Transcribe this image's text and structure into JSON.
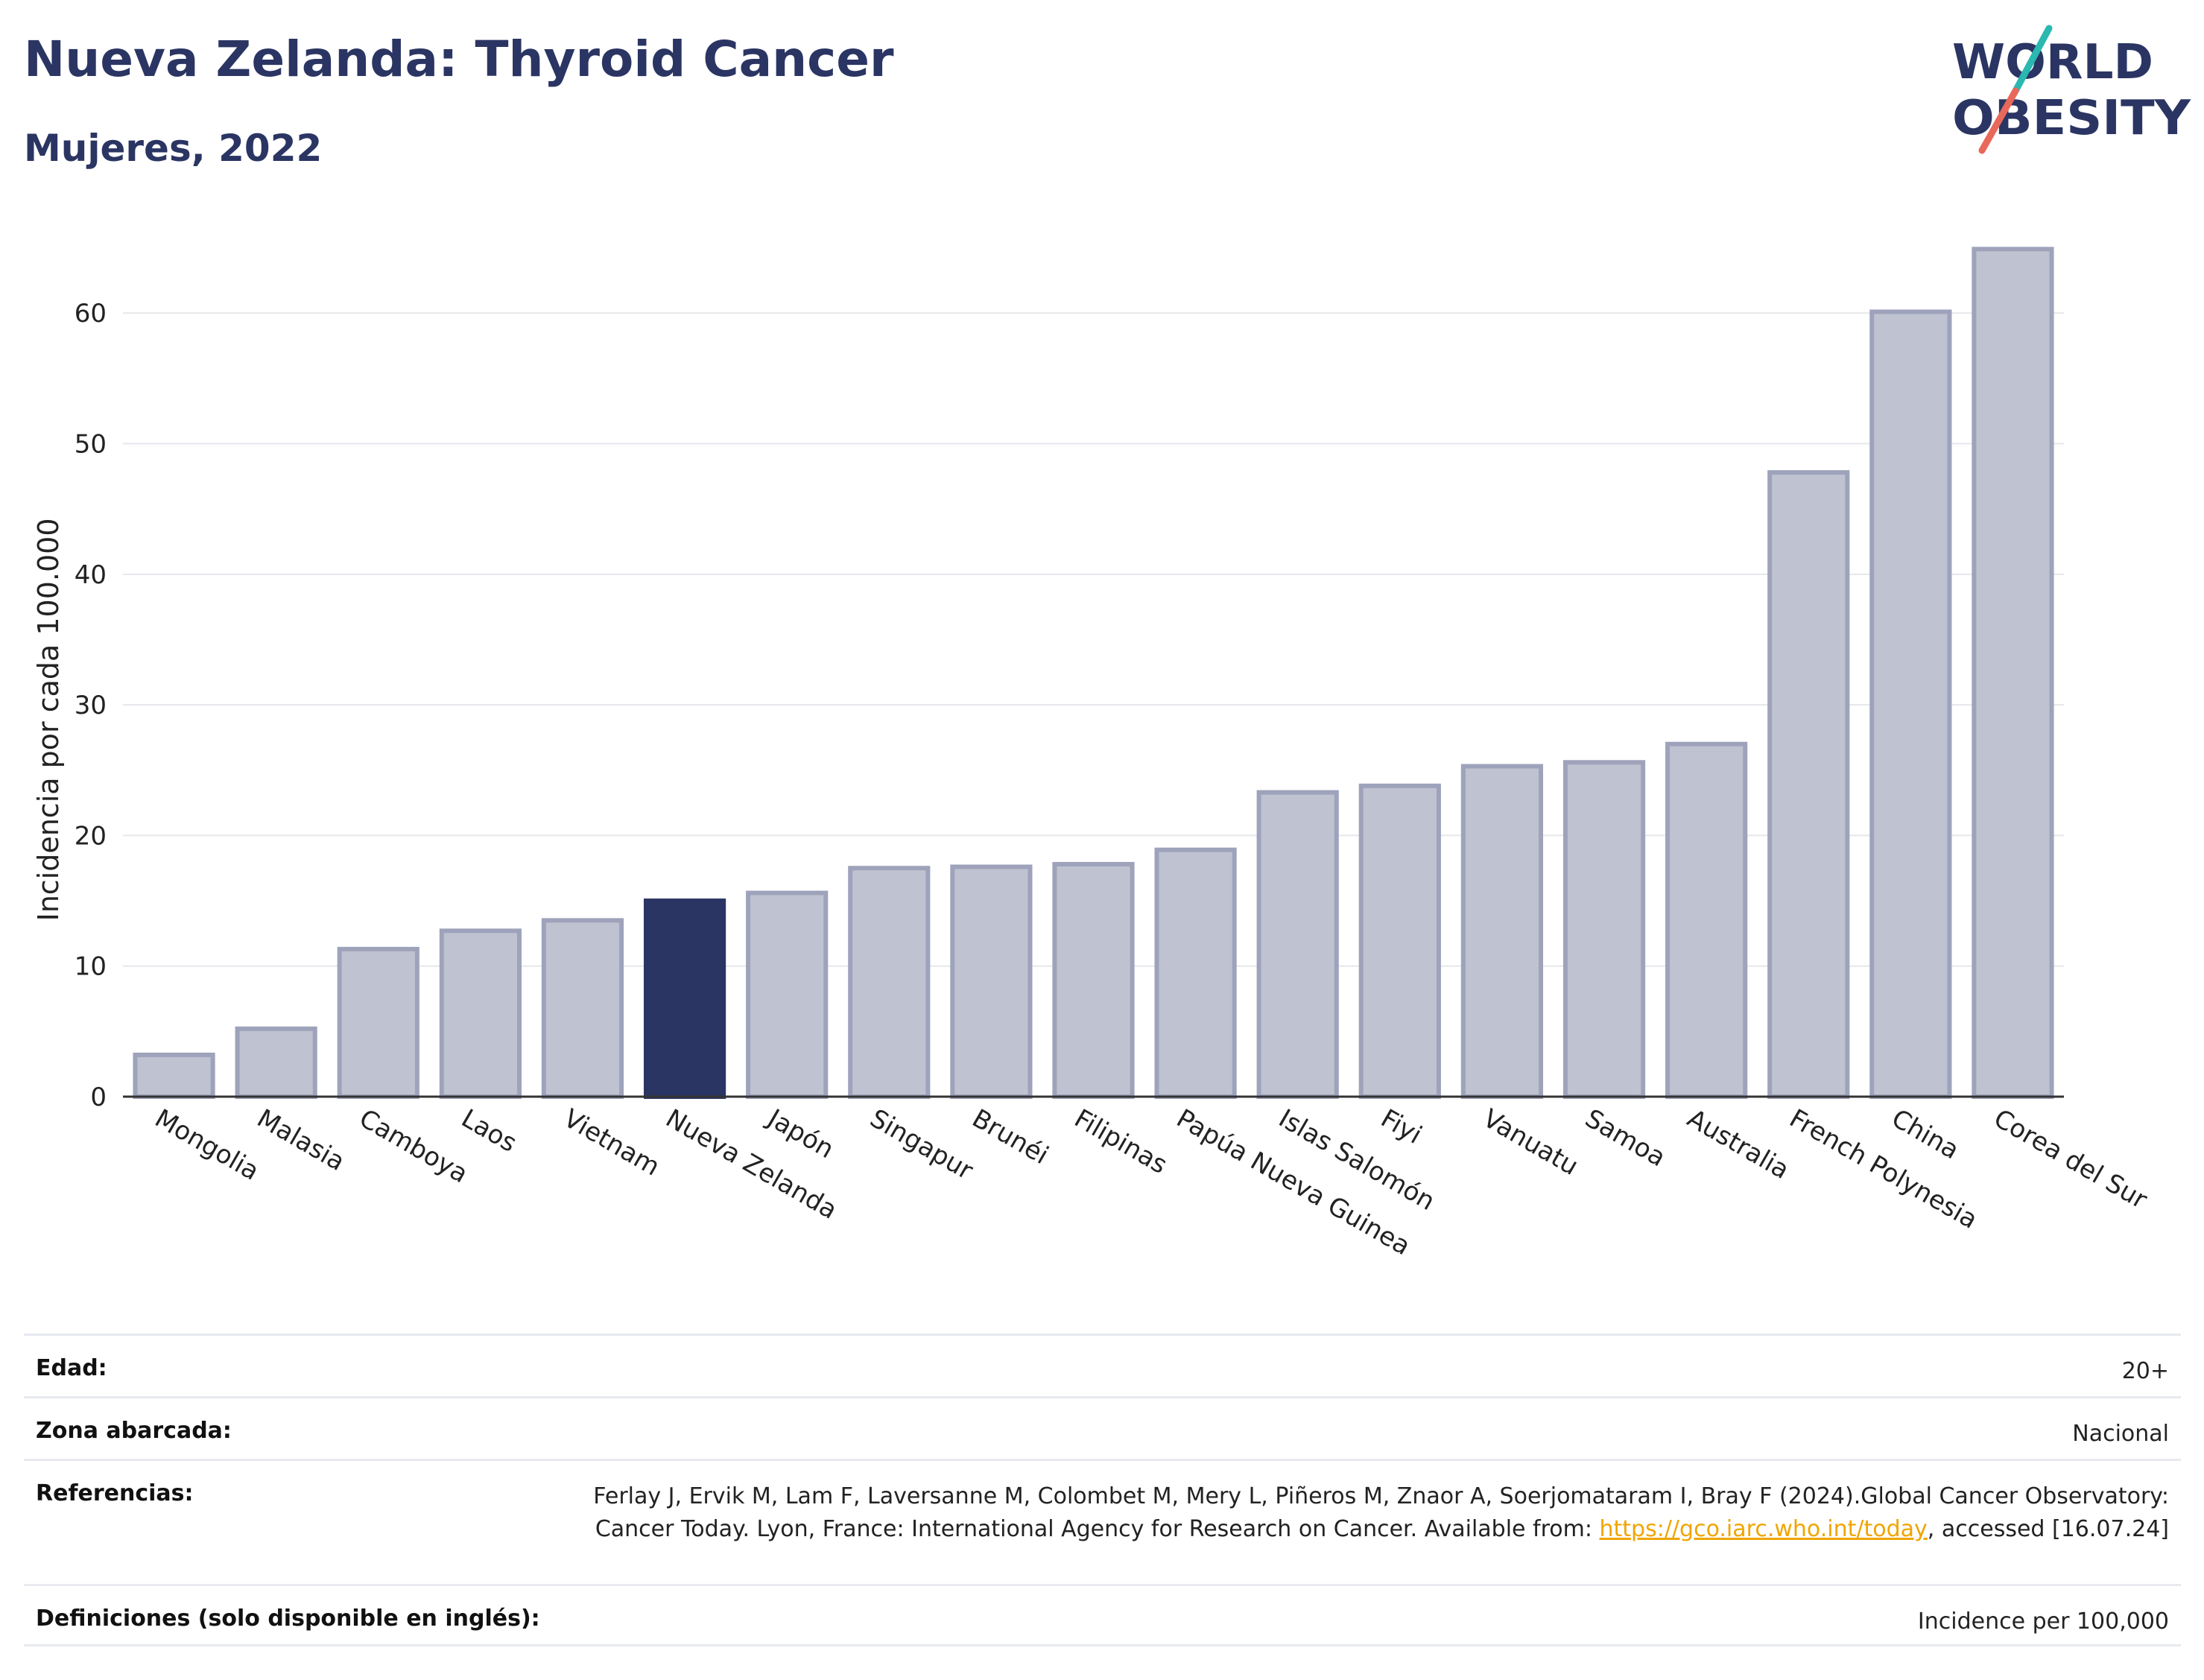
{
  "header": {
    "title": "Nueva Zelanda: Thyroid Cancer",
    "subtitle": "Mujeres, 2022"
  },
  "logo": {
    "line1": "WORLD",
    "line2": "OBESITY"
  },
  "colors": {
    "highlight": "#2b3563",
    "bar": "#bfc2d0",
    "bar_edge": "#9ea3bb",
    "accent_teal": "#2ab8b0",
    "accent_red": "#e8685a"
  },
  "chart_data": {
    "type": "bar",
    "categories": [
      "Mongolia",
      "Malasia",
      "Camboya",
      "Laos",
      "Vietnam",
      "Nueva Zelanda",
      "Japón",
      "Singapur",
      "Brunéi",
      "Filipinas",
      "Papúa Nueva Guinea",
      "Islas Salomón",
      "Fiyi",
      "Vanuatu",
      "Samoa",
      "Australia",
      "French Polynesia",
      "China",
      "Corea del Sur"
    ],
    "values": [
      3.2,
      5.2,
      11.3,
      12.7,
      13.5,
      15.0,
      15.6,
      17.5,
      17.6,
      17.8,
      18.9,
      23.3,
      23.8,
      25.3,
      25.6,
      27.0,
      47.8,
      60.1,
      64.9
    ],
    "highlight": "Nueva Zelanda",
    "ylabel": "Incidencia por cada 100.000",
    "xlabel": "",
    "yticks": [
      0,
      10,
      20,
      30,
      40,
      50,
      60
    ],
    "ylim": [
      0,
      68
    ],
    "grid": true
  },
  "meta": [
    {
      "key": "Edad:",
      "value": "20+"
    },
    {
      "key": "Zona abarcada:",
      "value": "Nacional"
    },
    {
      "key": "Referencias:",
      "value_pre": "Ferlay J, Ervik M, Lam F, Laversanne M, Colombet M, Mery L, Piñeros M, Znaor A, Soerjomataram I, Bray F (2024).Global Cancer Observatory: Cancer Today. Lyon, France: International Agency for Research on Cancer. Available from: ",
      "link": "https://gco.iarc.who.int/today",
      "value_post": ", accessed [16.07.24]"
    },
    {
      "key": "Definiciones (solo disponible en inglés):",
      "value": "Incidence per 100,000"
    }
  ]
}
